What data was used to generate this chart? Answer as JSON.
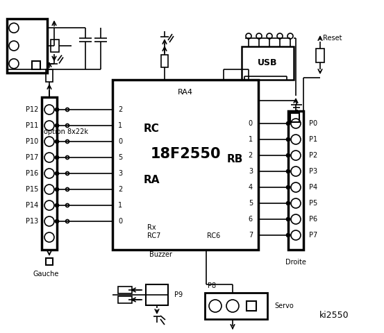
{
  "bg_color": "#ffffff",
  "fg_color": "#000000",
  "title": "ki2550",
  "left_labels": [
    "P12",
    "P11",
    "P10",
    "P17",
    "P16",
    "P15",
    "P14",
    "P13"
  ],
  "right_labels": [
    "P0",
    "P1",
    "P2",
    "P3",
    "P4",
    "P5",
    "P6",
    "P7"
  ],
  "rc_pins": [
    "2",
    "1",
    "0"
  ],
  "ra_pins": [
    "5",
    "3",
    "2",
    "1",
    "0"
  ],
  "rb_pins": [
    "0",
    "1",
    "2",
    "3",
    "4",
    "5",
    "6",
    "7"
  ]
}
